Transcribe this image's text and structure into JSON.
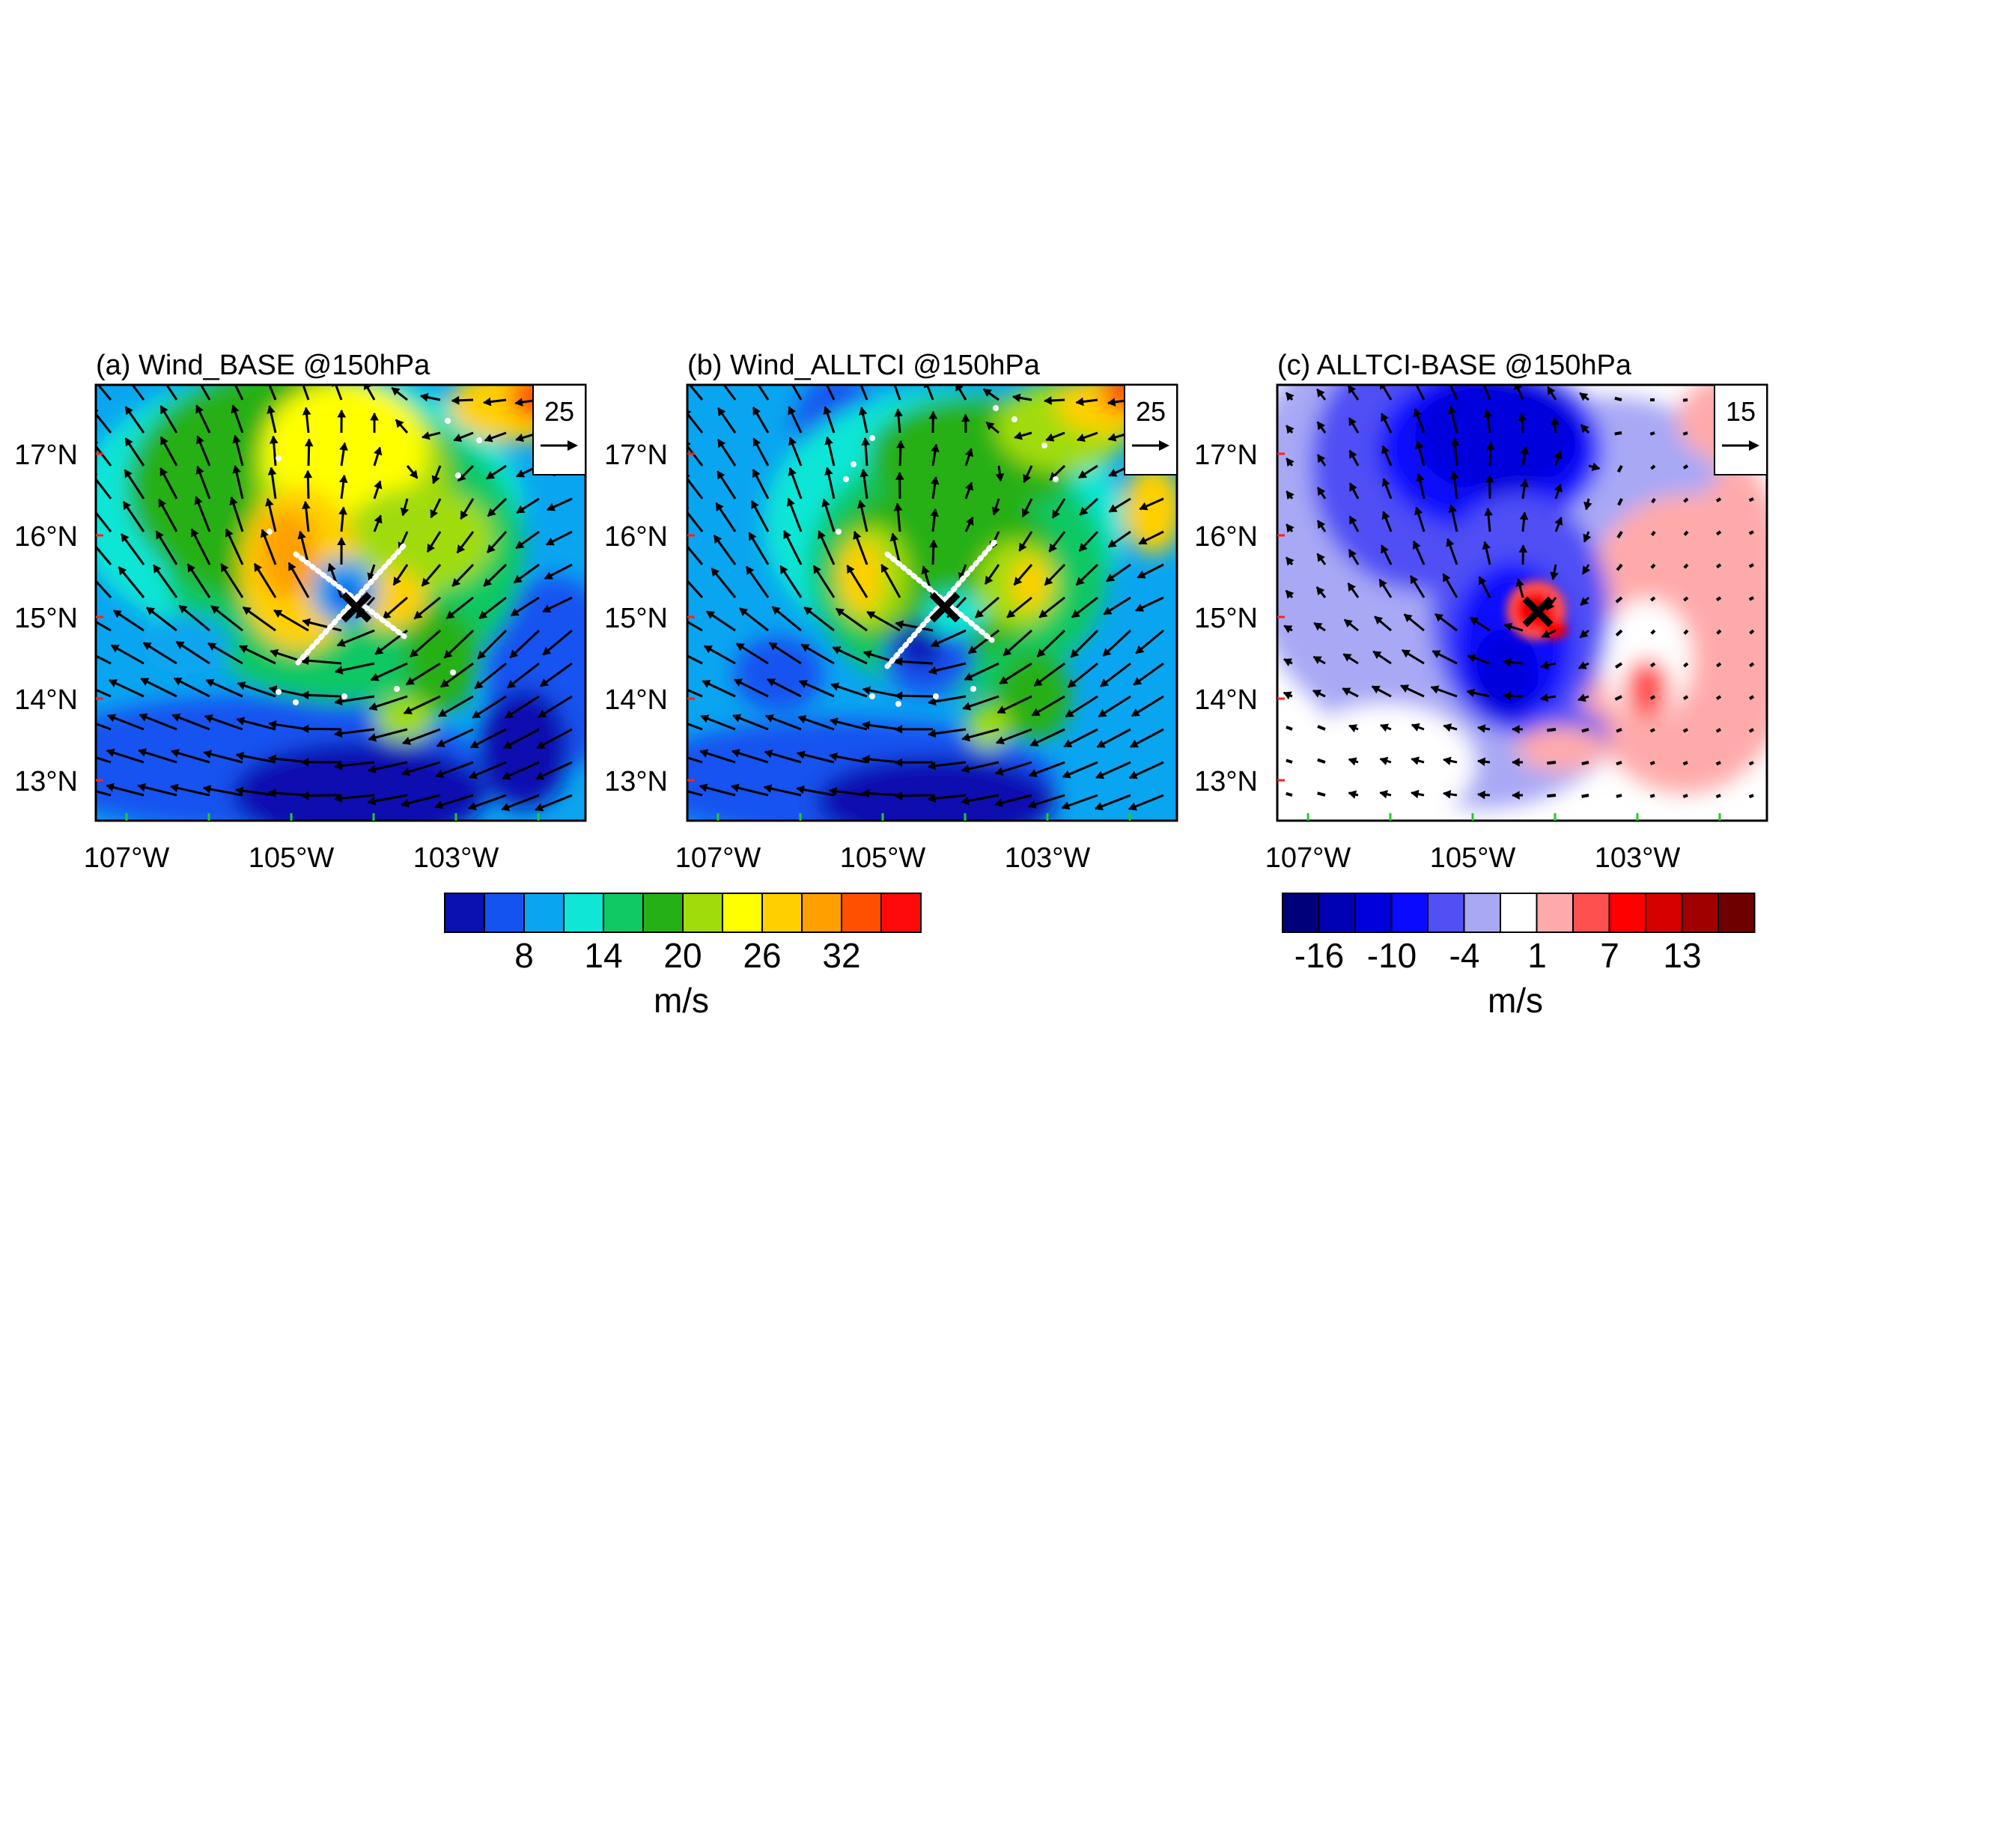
{
  "figure": {
    "panels": [
      {
        "id": "a",
        "title": "(a) Wind_BASE @150hPa",
        "variable": "wind speed",
        "reference_vector": {
          "value": "25",
          "icon": "right-arrow-icon"
        },
        "y_ticks": [
          "17°N",
          "16°N",
          "15°N",
          "14°N",
          "13°N"
        ],
        "x_ticks": [
          "107°W",
          "105°W",
          "103°W"
        ],
        "center_marker": "x-marker-icon",
        "cross_section_lines": true
      },
      {
        "id": "b",
        "title": "(b) Wind_ALLTCI @150hPa",
        "variable": "wind speed",
        "reference_vector": {
          "value": "25",
          "icon": "right-arrow-icon"
        },
        "y_ticks": [
          "17°N",
          "16°N",
          "15°N",
          "14°N",
          "13°N"
        ],
        "x_ticks": [
          "107°W",
          "105°W",
          "103°W"
        ],
        "center_marker": "x-marker-icon",
        "cross_section_lines": true
      },
      {
        "id": "c",
        "title": "(c) ALLTCI-BASE @150hPa",
        "variable": "wind speed difference",
        "reference_vector": {
          "value": "15",
          "icon": "right-arrow-icon"
        },
        "y_ticks": [
          "17°N",
          "16°N",
          "15°N",
          "14°N",
          "13°N"
        ],
        "x_ticks": [
          "107°W",
          "105°W",
          "103°W"
        ],
        "center_marker": "x-marker-icon",
        "cross_section_lines": false
      }
    ],
    "colorbars": [
      {
        "id": "speed",
        "labels": [
          "8",
          "14",
          "20",
          "26",
          "32"
        ],
        "unit": "m/s",
        "colors": [
          "#0b10b0",
          "#1553f0",
          "#0aa5f0",
          "#0fe6d6",
          "#10c864",
          "#25b015",
          "#a0dc0a",
          "#ffff00",
          "#ffd000",
          "#ffa000",
          "#ff5000",
          "#ff0a0a"
        ]
      },
      {
        "id": "difference",
        "labels": [
          "-16",
          "-10",
          "-4",
          "1",
          "7",
          "13"
        ],
        "unit": "m/s",
        "colors": [
          "#00007a",
          "#0000b4",
          "#0000dc",
          "#0a0aff",
          "#5050f5",
          "#a8a8f5",
          "#ffffff",
          "#ffaaaa",
          "#ff5050",
          "#ff0000",
          "#d60000",
          "#a00000",
          "#6e0000"
        ]
      }
    ]
  }
}
